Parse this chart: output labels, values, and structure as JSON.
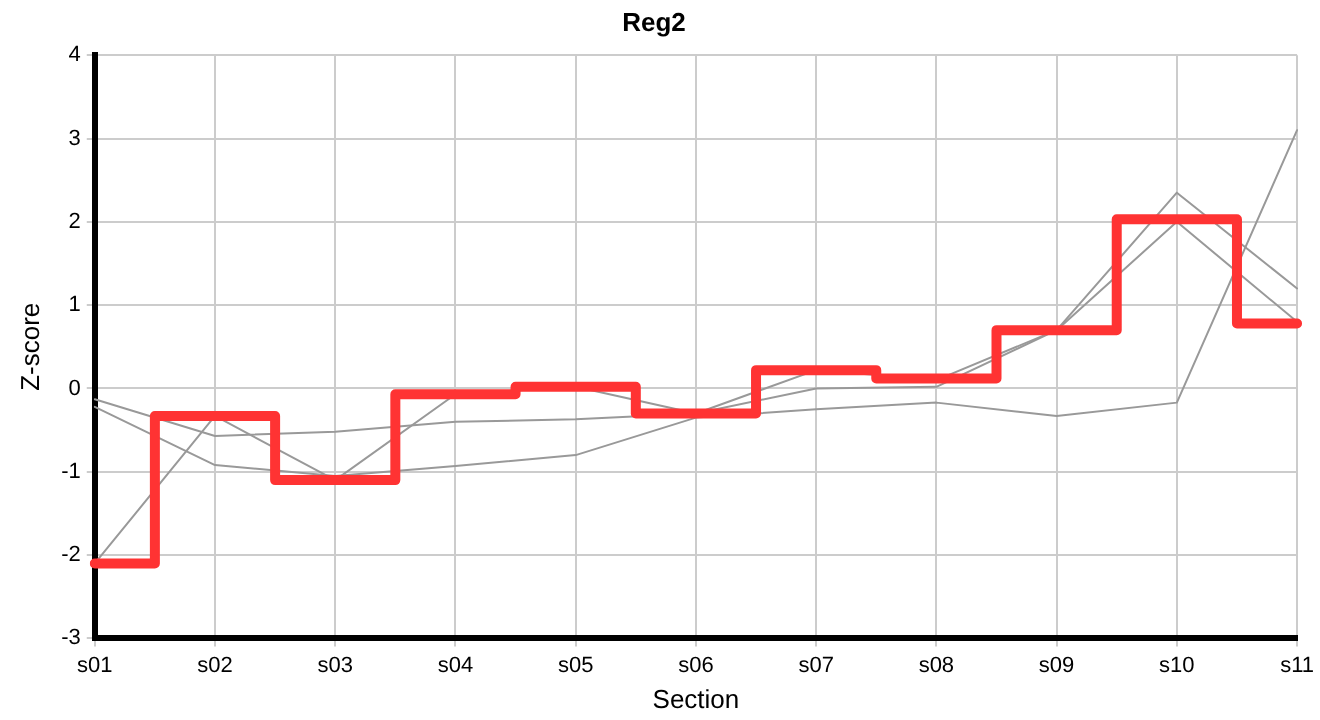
{
  "chart_data": {
    "type": "line",
    "title": "Reg2",
    "xlabel": "Section",
    "ylabel": "Z-score",
    "categories": [
      "s01",
      "s02",
      "s03",
      "s04",
      "s05",
      "s06",
      "s07",
      "s08",
      "s09",
      "s10",
      "s11"
    ],
    "ylim": [
      -3,
      4
    ],
    "yticks": [
      -3,
      -2,
      -1,
      0,
      1,
      2,
      3,
      4
    ],
    "grid": true,
    "legend": false,
    "marker": "none",
    "series": [
      {
        "color": "#999999",
        "values": [
          -0.13,
          -0.57,
          -0.52,
          -0.4,
          -0.37,
          -0.3,
          0.0,
          0.02,
          0.7,
          2.35,
          1.2
        ]
      },
      {
        "color": "#999999",
        "values": [
          -0.22,
          -0.92,
          -1.05,
          -0.93,
          -0.8,
          -0.35,
          -0.25,
          -0.17,
          -0.33,
          -0.17,
          3.1
        ]
      },
      {
        "color": "#999999",
        "values": [
          -2.1,
          -0.33,
          -1.1,
          -0.07,
          0.02,
          -0.3,
          0.22,
          0.1,
          0.7,
          2.0,
          0.8
        ]
      },
      {
        "type": "step",
        "color": "#ff3333",
        "values": [
          -2.1,
          -0.33,
          -1.1,
          -0.07,
          0.02,
          -0.3,
          0.22,
          0.12,
          0.7,
          2.03,
          0.78
        ]
      }
    ]
  }
}
